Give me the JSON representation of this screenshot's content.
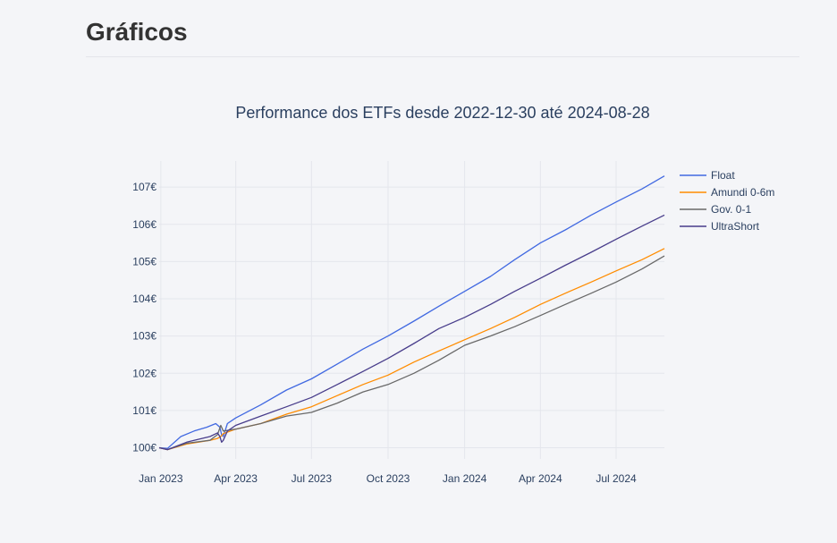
{
  "page": {
    "title": "Gráficos"
  },
  "chart_data": {
    "type": "line",
    "title": "Performance dos ETFs desde 2022-12-30 até 2024-08-28",
    "xlabel": "",
    "ylabel": "",
    "x_range": [
      "2022-12-30",
      "2024-08-28"
    ],
    "x_ticks": [
      {
        "date": "2023-01-01",
        "label": "Jan 2023"
      },
      {
        "date": "2023-04-01",
        "label": "Apr 2023"
      },
      {
        "date": "2023-07-01",
        "label": "Jul 2023"
      },
      {
        "date": "2023-10-01",
        "label": "Oct 2023"
      },
      {
        "date": "2024-01-01",
        "label": "Jan 2024"
      },
      {
        "date": "2024-04-01",
        "label": "Apr 2024"
      },
      {
        "date": "2024-07-01",
        "label": "Jul 2024"
      }
    ],
    "ylim": [
      99.7,
      107.7
    ],
    "y_ticks": [
      {
        "value": 100,
        "label": "100€"
      },
      {
        "value": 101,
        "label": "101€"
      },
      {
        "value": 102,
        "label": "102€"
      },
      {
        "value": 103,
        "label": "103€"
      },
      {
        "value": 104,
        "label": "104€"
      },
      {
        "value": 105,
        "label": "105€"
      },
      {
        "value": 106,
        "label": "106€"
      },
      {
        "value": 107,
        "label": "107€"
      }
    ],
    "grid": true,
    "legend_position": "top-right",
    "series": [
      {
        "name": "Float",
        "color": "#4169e1",
        "points": [
          [
            "2022-12-30",
            100.0
          ],
          [
            "2023-01-09",
            99.98
          ],
          [
            "2023-01-25",
            100.3
          ],
          [
            "2023-02-10",
            100.45
          ],
          [
            "2023-02-25",
            100.55
          ],
          [
            "2023-03-08",
            100.65
          ],
          [
            "2023-03-13",
            100.55
          ],
          [
            "2023-03-15",
            100.35
          ],
          [
            "2023-03-17",
            100.3
          ],
          [
            "2023-03-22",
            100.65
          ],
          [
            "2023-04-01",
            100.8
          ],
          [
            "2023-05-01",
            101.15
          ],
          [
            "2023-06-01",
            101.55
          ],
          [
            "2023-07-01",
            101.85
          ],
          [
            "2023-08-01",
            102.25
          ],
          [
            "2023-09-01",
            102.65
          ],
          [
            "2023-10-01",
            103.0
          ],
          [
            "2023-11-01",
            103.4
          ],
          [
            "2023-12-01",
            103.8
          ],
          [
            "2024-01-01",
            104.2
          ],
          [
            "2024-02-01",
            104.6
          ],
          [
            "2024-03-01",
            105.05
          ],
          [
            "2024-04-01",
            105.5
          ],
          [
            "2024-05-01",
            105.85
          ],
          [
            "2024-06-01",
            106.25
          ],
          [
            "2024-07-01",
            106.6
          ],
          [
            "2024-08-01",
            106.95
          ],
          [
            "2024-08-28",
            107.3
          ]
        ]
      },
      {
        "name": "Amundi 0-6m",
        "color": "#ff8c00",
        "points": [
          [
            "2022-12-30",
            100.0
          ],
          [
            "2023-01-09",
            99.95
          ],
          [
            "2023-02-01",
            100.1
          ],
          [
            "2023-03-01",
            100.2
          ],
          [
            "2023-03-10",
            100.25
          ],
          [
            "2023-03-14",
            100.3
          ],
          [
            "2023-03-17",
            100.38
          ],
          [
            "2023-04-01",
            100.5
          ],
          [
            "2023-05-01",
            100.65
          ],
          [
            "2023-06-01",
            100.9
          ],
          [
            "2023-07-01",
            101.1
          ],
          [
            "2023-08-01",
            101.4
          ],
          [
            "2023-09-01",
            101.7
          ],
          [
            "2023-10-01",
            101.95
          ],
          [
            "2023-11-01",
            102.3
          ],
          [
            "2023-12-01",
            102.6
          ],
          [
            "2024-01-01",
            102.9
          ],
          [
            "2024-02-01",
            103.2
          ],
          [
            "2024-03-01",
            103.5
          ],
          [
            "2024-04-01",
            103.85
          ],
          [
            "2024-05-01",
            104.15
          ],
          [
            "2024-06-01",
            104.45
          ],
          [
            "2024-07-01",
            104.75
          ],
          [
            "2024-08-01",
            105.05
          ],
          [
            "2024-08-28",
            105.35
          ]
        ]
      },
      {
        "name": "Gov. 0-1",
        "color": "#696969",
        "points": [
          [
            "2022-12-30",
            100.0
          ],
          [
            "2023-01-09",
            99.95
          ],
          [
            "2023-02-01",
            100.12
          ],
          [
            "2023-03-01",
            100.2
          ],
          [
            "2023-03-10",
            100.35
          ],
          [
            "2023-03-14",
            100.6
          ],
          [
            "2023-03-17",
            100.45
          ],
          [
            "2023-04-01",
            100.5
          ],
          [
            "2023-05-01",
            100.65
          ],
          [
            "2023-06-01",
            100.85
          ],
          [
            "2023-07-01",
            100.95
          ],
          [
            "2023-08-01",
            101.2
          ],
          [
            "2023-09-01",
            101.5
          ],
          [
            "2023-10-01",
            101.7
          ],
          [
            "2023-11-01",
            102.0
          ],
          [
            "2023-12-01",
            102.35
          ],
          [
            "2024-01-01",
            102.75
          ],
          [
            "2024-02-01",
            103.0
          ],
          [
            "2024-03-01",
            103.25
          ],
          [
            "2024-04-01",
            103.55
          ],
          [
            "2024-05-01",
            103.85
          ],
          [
            "2024-06-01",
            104.15
          ],
          [
            "2024-07-01",
            104.45
          ],
          [
            "2024-08-01",
            104.8
          ],
          [
            "2024-08-28",
            105.15
          ]
        ]
      },
      {
        "name": "UltraShort",
        "color": "#483d8b",
        "points": [
          [
            "2022-12-30",
            100.0
          ],
          [
            "2023-01-09",
            99.95
          ],
          [
            "2023-02-01",
            100.15
          ],
          [
            "2023-03-01",
            100.3
          ],
          [
            "2023-03-10",
            100.4
          ],
          [
            "2023-03-13",
            100.3
          ],
          [
            "2023-03-15",
            100.15
          ],
          [
            "2023-03-17",
            100.2
          ],
          [
            "2023-03-22",
            100.45
          ],
          [
            "2023-04-01",
            100.6
          ],
          [
            "2023-05-01",
            100.85
          ],
          [
            "2023-06-01",
            101.1
          ],
          [
            "2023-07-01",
            101.35
          ],
          [
            "2023-08-01",
            101.7
          ],
          [
            "2023-09-01",
            102.05
          ],
          [
            "2023-10-01",
            102.4
          ],
          [
            "2023-11-01",
            102.8
          ],
          [
            "2023-12-01",
            103.2
          ],
          [
            "2024-01-01",
            103.5
          ],
          [
            "2024-02-01",
            103.85
          ],
          [
            "2024-03-01",
            104.2
          ],
          [
            "2024-04-01",
            104.55
          ],
          [
            "2024-05-01",
            104.9
          ],
          [
            "2024-06-01",
            105.25
          ],
          [
            "2024-07-01",
            105.6
          ],
          [
            "2024-08-01",
            105.95
          ],
          [
            "2024-08-28",
            106.25
          ]
        ]
      }
    ]
  }
}
